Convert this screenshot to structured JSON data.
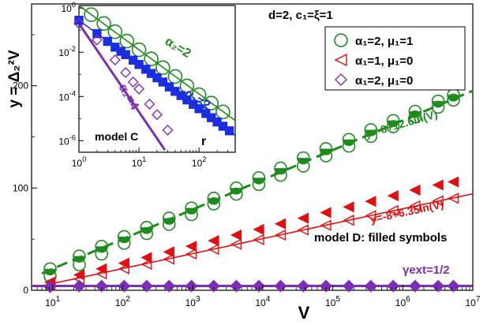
{
  "chart_data": [
    {
      "type": "scatter",
      "title": "",
      "xlabel": "V",
      "ylabel": "y = Δ₂²V",
      "x_scale": "log",
      "xlim": [
        5,
        10000000
      ],
      "ylim": [
        0,
        280
      ],
      "x_ticks": [
        {
          "v": 10,
          "label": "10",
          "sup": "1"
        },
        {
          "v": 100,
          "label": "10",
          "sup": "2"
        },
        {
          "v": 1000,
          "label": "10",
          "sup": "3"
        },
        {
          "v": 10000,
          "label": "10",
          "sup": "4"
        },
        {
          "v": 100000,
          "label": "10",
          "sup": "5"
        },
        {
          "v": 1000000,
          "label": "10",
          "sup": "6"
        },
        {
          "v": 10000000,
          "label": "10",
          "sup": "7"
        }
      ],
      "y_ticks": [
        {
          "v": 0,
          "label": "0"
        },
        {
          "v": 100,
          "label": "100"
        },
        {
          "v": 200,
          "label": "200"
        }
      ],
      "legend": {
        "placement": "top-right",
        "entries": [
          {
            "marker": "circle",
            "color": "#1f8b1f",
            "text": "α₁=2, μ₁=1"
          },
          {
            "marker": "triangle-left",
            "color": "#e01010",
            "text": "α₁=1, μ₁=0"
          },
          {
            "marker": "diamond",
            "color": "#7b2fb5",
            "text": "α₁=2, μ₁=0"
          }
        ]
      },
      "header_text": "d=2,  c₁=ξ=1",
      "series": [
        {
          "color": "#1f8b1f",
          "marker": "circle",
          "x": [
            9.2,
            24,
            50,
            105,
            220,
            460,
            960,
            2000,
            4200,
            8800,
            18000,
            38000,
            80000,
            170000,
            350000,
            730000,
            1500000,
            3200000,
            5300000
          ],
          "y": [
            14.0,
            25.0,
            35.5,
            46.0,
            55.5,
            64.5,
            74.0,
            84.5,
            94.0,
            103.5,
            112.5,
            121.5,
            131.5,
            141.0,
            150.5,
            160.0,
            169.5,
            179.0,
            186.0
          ]
        },
        {
          "color": "#1f8b1f",
          "marker": "circle-filled",
          "x": [
            9.2,
            24,
            50,
            105,
            220,
            460,
            960,
            2000,
            4200,
            8800,
            18000,
            38000,
            80000,
            170000,
            350000,
            730000,
            1500000,
            3200000,
            5300000
          ],
          "y": [
            21.0,
            33.5,
            43.0,
            52.5,
            61.5,
            70.5,
            80.5,
            90.0,
            100.0,
            110.0,
            119.5,
            129.5,
            138.5,
            147.5,
            157.0,
            166.0,
            175.0,
            185.0,
            191.0
          ]
        },
        {
          "color": "#e01010",
          "marker": "triangle-left",
          "x": [
            9.2,
            24,
            50,
            105,
            220,
            460,
            960,
            2000,
            4200,
            8800,
            18000,
            38000,
            80000,
            170000,
            350000,
            730000,
            1500000,
            3200000,
            5300000
          ],
          "y": [
            5.0,
            11.0,
            16.0,
            21.0,
            25.5,
            30.5,
            35.5,
            40.0,
            45.0,
            49.5,
            54.0,
            59.0,
            63.5,
            68.5,
            73.0,
            78.0,
            82.5,
            87.5,
            90.0
          ]
        },
        {
          "color": "#e01010",
          "marker": "triangle-left-filled",
          "x": [
            9.2,
            24,
            50,
            105,
            220,
            460,
            960,
            2000,
            4200,
            8800,
            18000,
            38000,
            80000,
            170000,
            350000,
            730000,
            1500000,
            3200000,
            5300000
          ],
          "y": [
            8.0,
            15.0,
            21.0,
            26.5,
            32.0,
            37.5,
            43.0,
            48.5,
            54.0,
            59.5,
            65.0,
            70.5,
            76.0,
            81.5,
            87.0,
            92.5,
            98.0,
            103.0,
            106.0
          ]
        },
        {
          "color": "#7b2fb5",
          "marker": "diamond",
          "x": [
            9.2,
            24,
            50,
            105,
            220,
            460,
            960,
            2000,
            4200,
            8800,
            18000,
            38000,
            80000,
            170000,
            350000,
            730000,
            1500000,
            3200000,
            5300000
          ],
          "y": [
            3.0,
            3.8,
            3.8,
            3.8,
            3.8,
            3.8,
            3.8,
            3.8,
            3.8,
            3.8,
            3.8,
            3.8,
            3.8,
            3.8,
            3.8,
            3.8,
            3.8,
            3.8,
            3.8
          ]
        },
        {
          "color": "#7b2fb5",
          "marker": "diamond-filled",
          "x": [
            9.2,
            24,
            50,
            105,
            220,
            460,
            960,
            2000,
            4200,
            8800,
            18000,
            38000,
            80000,
            170000,
            350000,
            730000,
            1500000,
            3200000,
            5300000
          ],
          "y": [
            4.0,
            4.5,
            4.5,
            4.5,
            4.5,
            4.5,
            4.5,
            4.5,
            4.5,
            4.5,
            4.5,
            4.5,
            4.5,
            4.5,
            4.5,
            4.5,
            4.5,
            4.5,
            4.5
          ]
        }
      ],
      "fit_lines": [
        {
          "color": "#1f8b1f",
          "dash": true,
          "intercept": -8,
          "slope": 12.6,
          "label": "y=-8+12.6ln(V)"
        },
        {
          "color": "#e01010",
          "dash": false,
          "intercept": -8,
          "slope": 6.35,
          "label": "y=-8+6.35ln(V)"
        },
        {
          "color": "#7b2fb5",
          "dash": false,
          "constant": 4.2,
          "label": "γext=1/2"
        }
      ],
      "annotations": [
        {
          "text": "model D: filled symbols"
        }
      ]
    },
    {
      "type": "scatter",
      "title": "",
      "xlabel": "r",
      "ylabel": "",
      "x_scale": "log",
      "y_scale": "log",
      "xlim": [
        1,
        400
      ],
      "ylim": [
        3e-07,
        1.3
      ],
      "x_ticks": [
        {
          "v": 1,
          "label": "10",
          "sup": "0"
        },
        {
          "v": 10,
          "label": "10",
          "sup": "1"
        },
        {
          "v": 100,
          "label": "10",
          "sup": "2"
        }
      ],
      "y_ticks": [
        {
          "v": 1,
          "label": "10",
          "sup": "0"
        },
        {
          "v": 0.01,
          "label": "10",
          "sup": "-2"
        },
        {
          "v": 0.0001,
          "label": "10",
          "sup": "-4"
        },
        {
          "v": 1e-06,
          "label": "10",
          "sup": "-6"
        }
      ],
      "annotations": [
        {
          "text": "model C"
        },
        {
          "text": "α₂=2",
          "color": "#1f8b1f"
        },
        {
          "text": "α₁=2",
          "color": "#1a2ee0"
        },
        {
          "text": "α₂=4",
          "color": "#7b2fb5"
        }
      ],
      "series": [
        {
          "color": "#1f8b1f",
          "marker": "circle",
          "x": [
            1.6,
            2.6,
            4,
            6.3,
            10,
            16,
            25,
            40,
            63,
            100,
            160,
            250
          ],
          "y": [
            0.5,
            0.2,
            0.085,
            0.032,
            0.013,
            0.005,
            0.002,
            0.0008,
            0.0003,
            0.00012,
            5e-05,
            2e-05
          ]
        },
        {
          "color": "#1a2ee0",
          "marker": "square-filled",
          "x": [
            1,
            2,
            3,
            4,
            5,
            6,
            8,
            10,
            13,
            16,
            20,
            25,
            32,
            40,
            50,
            63,
            80,
            100,
            130,
            160,
            200,
            250,
            320
          ],
          "y": [
            0.28,
            0.07,
            0.031,
            0.017,
            0.011,
            0.0078,
            0.0044,
            0.0028,
            0.0017,
            0.0011,
            0.0007,
            0.00045,
            0.00027,
            0.00017,
            0.00011,
            7e-05,
            4.4e-05,
            2.8e-05,
            1.7e-05,
            1.1e-05,
            7e-06,
            4.5e-06,
            2.8e-06
          ]
        },
        {
          "color": "#7b2fb5",
          "marker": "diamond",
          "x": [
            1,
            2,
            4,
            6,
            8,
            10,
            15,
            20,
            30
          ],
          "y": [
            0.2,
            0.036,
            0.0045,
            0.0012,
            0.00045,
            0.00022,
            4.5e-05,
            1.5e-05,
            3e-06
          ]
        }
      ],
      "fit_lines": [
        {
          "color": "#1f8b1f",
          "power": -2,
          "amp": 1.3
        },
        {
          "color": "#1a2ee0",
          "power": -2,
          "amp": 0.28
        },
        {
          "color": "#7b2fb5",
          "power": -4,
          "amp": 0.2
        }
      ]
    }
  ]
}
